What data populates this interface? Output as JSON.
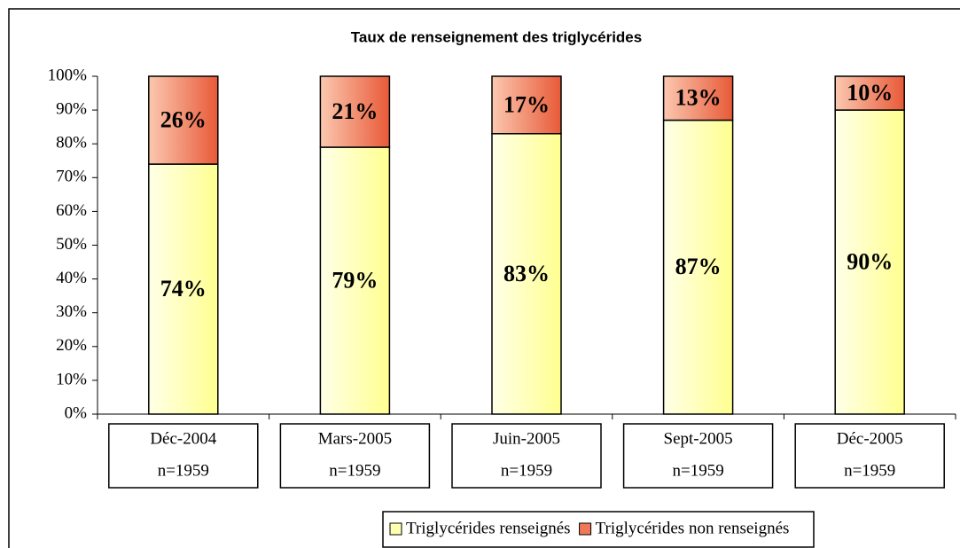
{
  "chart_data": {
    "type": "stacked_bar",
    "title": "Taux de renseignement des triglycérides",
    "categories": [
      "Déc-2004",
      "Mars-2005",
      "Juin-2005",
      "Sept-2005",
      "Déc-2005"
    ],
    "category_counts": [
      "n=1959",
      "n=1959",
      "n=1959",
      "n=1959",
      "n=1959"
    ],
    "series": [
      {
        "name": "Triglycérides renseignés",
        "color": "#ffffb0",
        "values": [
          74,
          79,
          83,
          87,
          90
        ],
        "value_labels": [
          "74%",
          "79%",
          "83%",
          "87%",
          "90%"
        ]
      },
      {
        "name": "Triglycérides non renseignés",
        "color": "#f07858",
        "values": [
          26,
          21,
          17,
          13,
          10
        ],
        "value_labels": [
          "26%",
          "21%",
          "17%",
          "13%",
          "10%"
        ]
      }
    ],
    "ylim": [
      0,
      100
    ],
    "yticks": [
      {
        "value": 0,
        "label": "0%"
      },
      {
        "value": 10,
        "label": "10%"
      },
      {
        "value": 20,
        "label": "20%"
      },
      {
        "value": 30,
        "label": "30%"
      },
      {
        "value": 40,
        "label": "40%"
      },
      {
        "value": 50,
        "label": "50%"
      },
      {
        "value": 60,
        "label": "60%"
      },
      {
        "value": 70,
        "label": "70%"
      },
      {
        "value": 80,
        "label": "80%"
      },
      {
        "value": 90,
        "label": "90%"
      },
      {
        "value": 100,
        "label": "100%"
      }
    ],
    "legend": "bottom"
  }
}
